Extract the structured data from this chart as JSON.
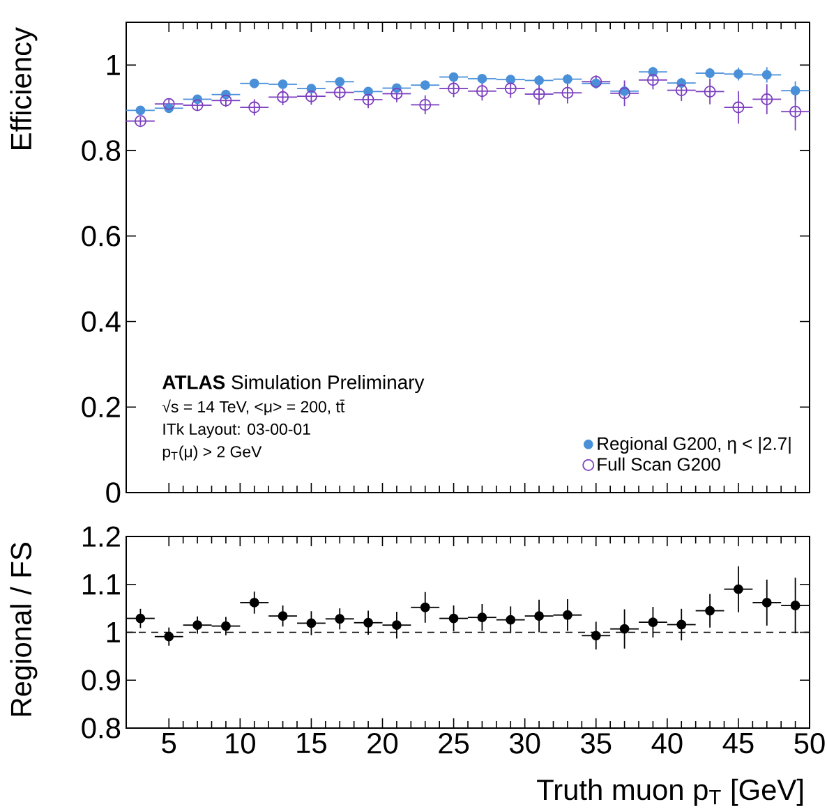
{
  "chart_data": [
    {
      "type": "scatter",
      "ylabel": "Efficiency",
      "x": [
        3,
        5,
        7,
        9,
        11,
        13,
        15,
        17,
        19,
        21,
        23,
        25,
        27,
        29,
        31,
        33,
        35,
        37,
        39,
        41,
        43,
        45,
        47,
        49
      ],
      "series": [
        {
          "name": "Regional G200, η < |2.7|",
          "color": "#4a90d9",
          "values": [
            0.894,
            0.899,
            0.92,
            0.931,
            0.957,
            0.955,
            0.945,
            0.961,
            0.938,
            0.946,
            0.953,
            0.972,
            0.968,
            0.966,
            0.964,
            0.967,
            0.957,
            0.939,
            0.984,
            0.958,
            0.981,
            0.979,
            0.977,
            0.94
          ],
          "errors": [
            0.01,
            0.01,
            0.01,
            0.01,
            0.01,
            0.01,
            0.01,
            0.01,
            0.01,
            0.01,
            0.01,
            0.01,
            0.01,
            0.01,
            0.012,
            0.012,
            0.012,
            0.015,
            0.012,
            0.012,
            0.012,
            0.015,
            0.018,
            0.022
          ],
          "xerrors": [
            1,
            1,
            1,
            1,
            1,
            1,
            1,
            1,
            1,
            1,
            1,
            1,
            1,
            1,
            1,
            1,
            1,
            1,
            1,
            1,
            1,
            1,
            1,
            1
          ]
        },
        {
          "name": "Full Scan G200",
          "color": "#7b3fbf",
          "values": [
            0.869,
            0.909,
            0.906,
            0.917,
            0.901,
            0.925,
            0.927,
            0.936,
            0.919,
            0.933,
            0.907,
            0.945,
            0.939,
            0.945,
            0.932,
            0.935,
            0.961,
            0.934,
            0.965,
            0.941,
            0.938,
            0.901,
            0.92,
            0.891
          ],
          "errors": [
            0.01,
            0.012,
            0.012,
            0.015,
            0.019,
            0.019,
            0.02,
            0.019,
            0.02,
            0.02,
            0.022,
            0.02,
            0.022,
            0.022,
            0.025,
            0.025,
            0.015,
            0.03,
            0.022,
            0.025,
            0.03,
            0.038,
            0.035,
            0.044
          ],
          "xerrors": [
            1,
            1,
            1,
            1,
            1,
            1,
            1,
            1,
            1,
            1,
            1,
            1,
            1,
            1,
            1,
            1,
            1,
            1,
            1,
            1,
            1,
            1,
            1,
            1
          ]
        }
      ],
      "xlim": [
        2,
        50
      ],
      "xticks": [
        5,
        10,
        15,
        20,
        25,
        30,
        35,
        40,
        45,
        50
      ],
      "ylim": [
        0,
        1.1
      ],
      "yticks": [
        0,
        0.2,
        0.4,
        0.6,
        0.8,
        1
      ],
      "tick_labels": "y",
      "marker": "circle",
      "legend": "bottom right",
      "annotations": [
        "**ATLAS** Simulation Preliminary",
        "√s = 14 TeV, <μ> = 200, tt̄",
        "ITk Layout: 03-00-01",
        "p$_{T}$(μ) > 2 GeV"
      ]
    },
    {
      "type": "scatter",
      "ylabel": "Regional / FS",
      "xlabel": "Truth muon p$_{T}$ [GeV]",
      "x": [
        3,
        5,
        7,
        9,
        11,
        13,
        15,
        17,
        19,
        21,
        23,
        25,
        27,
        29,
        31,
        33,
        35,
        37,
        39,
        41,
        43,
        45,
        47,
        49
      ],
      "series": [
        {
          "color": "#000000",
          "values": [
            1.029,
            0.991,
            1.015,
            1.013,
            1.062,
            1.034,
            1.019,
            1.028,
            1.02,
            1.015,
            1.052,
            1.029,
            1.031,
            1.026,
            1.034,
            1.036,
            0.993,
            1.007,
            1.021,
            1.016,
            1.045,
            1.09,
            1.062,
            1.056
          ],
          "errors": [
            0.02,
            0.019,
            0.018,
            0.019,
            0.023,
            0.022,
            0.025,
            0.022,
            0.025,
            0.028,
            0.032,
            0.027,
            0.028,
            0.028,
            0.034,
            0.033,
            0.029,
            0.041,
            0.032,
            0.033,
            0.035,
            0.048,
            0.048,
            0.058
          ],
          "xerrors": [
            1,
            1,
            1,
            1,
            1,
            1,
            1,
            1,
            1,
            1,
            1,
            1,
            1,
            1,
            1,
            1,
            1,
            1,
            1,
            1,
            1,
            1,
            1,
            1
          ]
        }
      ],
      "xlim": [
        2,
        50
      ],
      "xticks": [
        5,
        10,
        15,
        20,
        25,
        30,
        35,
        40,
        45,
        50
      ],
      "ylim": [
        0.8,
        1.2
      ],
      "yticks": [
        0.8,
        0.9,
        1,
        1.1,
        1.2
      ],
      "marker": "circle",
      "ref_lines": [
        {
          "axis": "y",
          "value": 1,
          "color": "#000000",
          "line_style": "dashed"
        }
      ]
    }
  ]
}
